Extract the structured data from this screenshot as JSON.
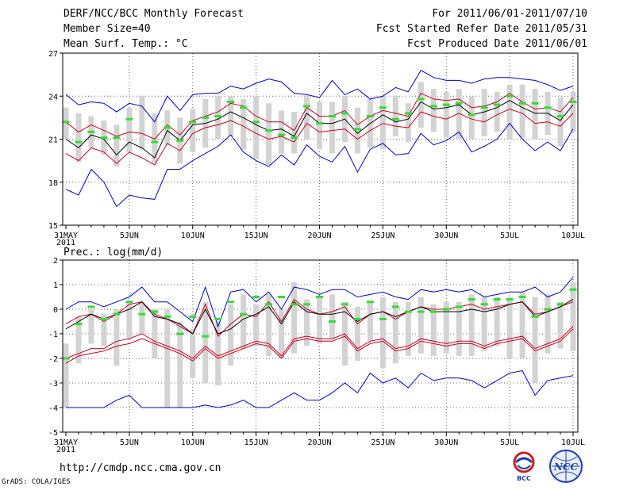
{
  "header": {
    "title": "DERF/NCC/BCC Monthly Forecast",
    "member_size": "Member Size=40",
    "variable": "Mean Surf. Temp.: °C",
    "forecast_period": "For 2011/06/01-2011/07/10",
    "fcst_started": "Fcst Started Refer Date 2011/05/31",
    "fcst_produced": "Fcst Produced Date 2011/06/01"
  },
  "footer": {
    "url": "http://cmdp.ncc.cma.gov.cn",
    "credit": "GrADS: COLA/IGES",
    "logo_left_text": "BCC",
    "logo_right_text": "NCC"
  },
  "colors": {
    "envelope": "#0000cc",
    "spread": "#cc0022",
    "mean": "#000000",
    "box": "#d3d3d3",
    "marker": "#33dd33",
    "grid": "#666666"
  },
  "chart_data": [
    {
      "type": "line",
      "title": "Mean Surf. Temp.: °C",
      "xlabel": "",
      "ylabel": "°C",
      "days": 41,
      "x_tick_labels": [
        "31MAY",
        "5JUN",
        "10JUN",
        "15JUN",
        "20JUN",
        "25JUN",
        "30JUN",
        "5JUL",
        "10JUL"
      ],
      "x_tick_days": [
        0,
        5,
        10,
        15,
        20,
        25,
        30,
        35,
        40
      ],
      "x_sub_label": "2011",
      "y_ticks": [
        15,
        18,
        21,
        24,
        27
      ],
      "ylim": [
        15,
        27
      ],
      "grid": true,
      "series": [
        {
          "name": "max",
          "color": "blue",
          "values": [
            24.1,
            23.4,
            23.6,
            23.5,
            22.9,
            23.5,
            23.3,
            22.2,
            24.0,
            23.0,
            24.1,
            24.2,
            24.2,
            24.7,
            24.5,
            24.9,
            25.2,
            25.0,
            24.2,
            24.1,
            23.9,
            25.1,
            24.1,
            24.5,
            23.8,
            24.0,
            24.6,
            24.3,
            25.8,
            25.3,
            25.1,
            25.1,
            24.9,
            25.2,
            25.3,
            25.3,
            25.2,
            25.1,
            24.8,
            24.4,
            24.7
          ]
        },
        {
          "name": "upper",
          "color": "red",
          "values": [
            22.2,
            21.5,
            22.0,
            21.6,
            21.2,
            21.5,
            21.4,
            21.0,
            22.0,
            21.3,
            22.3,
            22.6,
            22.9,
            23.5,
            23.3,
            22.6,
            22.2,
            22.2,
            21.6,
            23.2,
            22.6,
            22.6,
            23.0,
            22.0,
            22.6,
            23.0,
            22.8,
            22.6,
            24.2,
            23.8,
            23.7,
            23.8,
            23.2,
            23.3,
            23.6,
            24.2,
            23.6,
            23.1,
            23.2,
            22.9,
            23.9
          ]
        },
        {
          "name": "mean",
          "color": "black",
          "values": [
            21.0,
            20.4,
            21.3,
            21.0,
            19.9,
            20.8,
            20.4,
            19.7,
            21.6,
            20.9,
            22.0,
            22.1,
            22.4,
            22.9,
            22.5,
            22.0,
            21.6,
            21.7,
            21.2,
            22.8,
            22.1,
            22.1,
            22.4,
            21.4,
            22.1,
            22.7,
            22.2,
            22.4,
            23.6,
            23.1,
            23.2,
            23.4,
            22.7,
            22.9,
            23.2,
            23.7,
            23.2,
            22.8,
            22.8,
            22.3,
            23.4
          ]
        },
        {
          "name": "lower",
          "color": "red",
          "values": [
            20.0,
            19.5,
            20.4,
            20.1,
            19.3,
            20.1,
            19.7,
            19.2,
            20.7,
            20.2,
            21.4,
            21.8,
            22.0,
            22.3,
            21.9,
            21.4,
            21.0,
            21.2,
            20.8,
            22.1,
            21.5,
            21.6,
            21.7,
            21.0,
            21.6,
            22.1,
            21.9,
            21.8,
            22.9,
            22.6,
            22.4,
            22.8,
            22.4,
            22.2,
            22.7,
            23.1,
            22.8,
            22.1,
            22.2,
            21.9,
            22.8
          ]
        },
        {
          "name": "min",
          "color": "blue",
          "values": [
            17.5,
            17.1,
            18.9,
            18.0,
            16.3,
            17.1,
            16.9,
            16.8,
            18.9,
            18.9,
            19.5,
            20.0,
            20.5,
            21.3,
            20.1,
            19.5,
            19.1,
            19.9,
            19.2,
            20.6,
            19.8,
            19.4,
            20.5,
            18.7,
            20.3,
            20.7,
            19.9,
            20.0,
            21.4,
            20.6,
            20.9,
            21.5,
            20.1,
            20.5,
            21.0,
            22.1,
            21.0,
            20.2,
            20.8,
            20.2,
            21.7
          ]
        },
        {
          "name": "box_high",
          "color": "grey",
          "values": [
            23.2,
            22.8,
            22.6,
            22.3,
            22.0,
            23.2,
            24.0,
            22.8,
            23.0,
            22.5,
            23.1,
            23.8,
            24.0,
            24.0,
            23.8,
            24.0,
            23.5,
            23.0,
            22.9,
            24.0,
            23.6,
            23.6,
            24.0,
            23.2,
            23.8,
            24.0,
            24.0,
            23.5,
            25.0,
            24.5,
            24.3,
            24.5,
            24.0,
            24.5,
            24.3,
            24.8,
            24.8,
            24.5,
            24.3,
            23.9,
            24.3
          ]
        },
        {
          "name": "box_low",
          "color": "grey",
          "values": [
            21.0,
            19.4,
            20.4,
            19.9,
            19.1,
            20.1,
            20.3,
            19.3,
            20.6,
            19.3,
            20.1,
            20.4,
            21.0,
            21.2,
            20.3,
            19.6,
            19.2,
            20.0,
            20.0,
            21.0,
            20.3,
            20.0,
            20.8,
            20.0,
            20.4,
            20.3,
            21.2,
            20.8,
            21.8,
            21.5,
            21.1,
            21.0,
            21.0,
            21.2,
            21.5,
            21.0,
            21.1,
            21.0,
            21.3,
            20.5,
            21.5
          ]
        },
        {
          "name": "marker",
          "color": "green",
          "values": [
            22.2,
            20.8,
            21.5,
            21.1,
            21.1,
            22.4,
            null,
            20.8,
            21.8,
            20.9,
            22.2,
            22.5,
            22.6,
            23.6,
            23.2,
            22.2,
            21.6,
            21.3,
            21.1,
            23.3,
            22.1,
            22.6,
            22.8,
            21.7,
            22.6,
            23.2,
            22.4,
            22.8,
            23.8,
            23.3,
            23.4,
            23.5,
            22.7,
            23.2,
            23.4,
            24.0,
            23.5,
            23.5,
            23.2,
            22.6,
            23.6
          ]
        }
      ]
    },
    {
      "type": "line",
      "title": "Prec.: log(mm/d)",
      "xlabel": "",
      "ylabel": "log(mm/d)",
      "days": 41,
      "x_tick_labels": [
        "31MAY",
        "5JUN",
        "10JUN",
        "15JUN",
        "20JUN",
        "25JUN",
        "30JUN",
        "5JUL",
        "10JUL"
      ],
      "x_tick_days": [
        0,
        5,
        10,
        15,
        20,
        25,
        30,
        35,
        40
      ],
      "x_sub_label": "2011",
      "y_ticks": [
        -5,
        -4,
        -3,
        -2,
        -1,
        0,
        1,
        2
      ],
      "ylim": [
        -5,
        2
      ],
      "grid": true,
      "series": [
        {
          "name": "max",
          "color": "blue",
          "values": [
            0.0,
            0.3,
            0.3,
            0.1,
            0.3,
            0.5,
            0.9,
            0.3,
            0.3,
            -0.1,
            -0.5,
            0.9,
            -0.7,
            0.7,
            0.8,
            0.3,
            0.7,
            0.0,
            0.9,
            0.8,
            0.6,
            0.8,
            0.8,
            0.5,
            0.6,
            0.7,
            0.5,
            0.4,
            0.8,
            0.7,
            0.8,
            0.7,
            0.8,
            0.5,
            0.6,
            0.7,
            0.7,
            0.9,
            0.5,
            0.7,
            1.3
          ]
        },
        {
          "name": "upper",
          "color": "red",
          "values": [
            -0.6,
            -0.3,
            -0.2,
            -0.5,
            -0.2,
            0.2,
            0.3,
            -0.2,
            -0.4,
            -0.7,
            -1.0,
            0.2,
            -1.1,
            -0.6,
            -0.2,
            -0.3,
            0.3,
            -0.5,
            0.4,
            0.0,
            -0.2,
            -0.1,
            0.1,
            -0.6,
            -0.2,
            -0.1,
            -0.4,
            -0.1,
            0.1,
            0.0,
            0.0,
            0.1,
            0.2,
            0.0,
            0.1,
            0.2,
            0.3,
            -0.2,
            -0.1,
            0.1,
            0.3
          ]
        },
        {
          "name": "mean",
          "color": "black",
          "values": [
            -0.8,
            -0.5,
            -0.2,
            -0.4,
            -0.2,
            0.0,
            0.3,
            -0.3,
            -0.4,
            -0.6,
            -1.0,
            0.0,
            -1.0,
            -0.8,
            -0.4,
            -0.2,
            0.1,
            -0.6,
            0.3,
            -0.1,
            -0.2,
            -0.2,
            -0.1,
            -0.5,
            -0.2,
            -0.1,
            -0.3,
            -0.1,
            0.1,
            -0.1,
            -0.1,
            -0.1,
            0.0,
            -0.1,
            0.0,
            0.2,
            0.3,
            -0.3,
            -0.1,
            0.1,
            0.4
          ]
        },
        {
          "name": "lower",
          "color": "red",
          "values": [
            -2.0,
            -1.8,
            -1.6,
            -1.6,
            -1.3,
            -1.2,
            -1.0,
            -1.3,
            -1.5,
            -1.7,
            -2.0,
            -1.5,
            -1.9,
            -1.7,
            -1.5,
            -1.3,
            -1.4,
            -1.9,
            -1.2,
            -1.1,
            -1.2,
            -1.2,
            -1.0,
            -1.6,
            -1.3,
            -1.2,
            -1.6,
            -1.5,
            -1.2,
            -1.3,
            -1.4,
            -1.3,
            -1.3,
            -1.5,
            -1.3,
            -1.2,
            -1.1,
            -1.6,
            -1.4,
            -1.2,
            -0.7
          ]
        },
        {
          "name": "low_envelope",
          "color": "red",
          "values": [
            -2.2,
            -1.9,
            -1.8,
            -1.7,
            -1.5,
            -1.4,
            -1.2,
            -1.4,
            -1.6,
            -1.8,
            -2.1,
            -1.6,
            -2.0,
            -1.8,
            -1.6,
            -1.4,
            -1.5,
            -2.0,
            -1.3,
            -1.2,
            -1.3,
            -1.3,
            -1.1,
            -1.7,
            -1.4,
            -1.3,
            -1.7,
            -1.6,
            -1.3,
            -1.4,
            -1.5,
            -1.4,
            -1.4,
            -1.6,
            -1.4,
            -1.3,
            -1.2,
            -1.7,
            -1.5,
            -1.3,
            -0.8
          ]
        },
        {
          "name": "min",
          "color": "blue",
          "values": [
            -4.0,
            -4.0,
            -4.0,
            -4.0,
            -3.7,
            -3.5,
            -4.0,
            -4.0,
            -4.0,
            -4.0,
            -4.0,
            -3.9,
            -4.0,
            -3.9,
            -3.7,
            -4.0,
            -4.0,
            -3.7,
            -3.4,
            -3.7,
            -3.7,
            -3.4,
            -3.0,
            -3.4,
            -2.6,
            -3.0,
            -2.8,
            -3.2,
            -2.6,
            -2.9,
            -2.8,
            -2.8,
            -2.9,
            -3.2,
            -2.9,
            -2.6,
            -2.5,
            -3.5,
            -2.9,
            -2.8,
            -2.7
          ]
        },
        {
          "name": "box_high",
          "color": "grey",
          "values": [
            -1.4,
            -0.3,
            0.0,
            -0.2,
            0.0,
            0.3,
            0.3,
            0.0,
            0.0,
            -0.5,
            -0.8,
            0.3,
            -0.5,
            0.2,
            0.6,
            0.2,
            0.6,
            0.0,
            1.1,
            0.4,
            0.5,
            0.6,
            0.3,
            0.1,
            0.3,
            0.5,
            0.3,
            0.3,
            0.5,
            0.2,
            0.3,
            0.3,
            0.6,
            0.5,
            0.5,
            0.5,
            0.7,
            0.5,
            0.6,
            0.3,
            1.1
          ]
        },
        {
          "name": "box_low",
          "color": "grey",
          "values": [
            -4.0,
            -2.2,
            -1.4,
            -1.5,
            -2.3,
            -1.2,
            -1.0,
            -2.0,
            -4.0,
            -4.0,
            -2.8,
            -3.0,
            -3.1,
            -2.3,
            -1.6,
            -1.5,
            -1.9,
            -2.0,
            -1.8,
            -1.5,
            -1.4,
            -1.2,
            -2.3,
            -2.1,
            -1.3,
            -2.4,
            -2.2,
            -1.9,
            -1.8,
            -1.9,
            -1.8,
            -1.9,
            -1.9,
            -1.7,
            -1.5,
            -2.0,
            -2.0,
            -3.0,
            -1.8,
            -1.6,
            -1.7
          ]
        },
        {
          "name": "marker",
          "color": "green",
          "values": [
            -2.0,
            -0.6,
            0.1,
            -0.4,
            -0.2,
            0.3,
            -0.2,
            -0.1,
            -0.3,
            -1.0,
            -0.3,
            -1.1,
            -0.4,
            0.3,
            -0.2,
            0.5,
            0.2,
            0.5,
            0.2,
            0.2,
            0.5,
            -0.5,
            0.2,
            -0.4,
            0.3,
            -0.4,
            0.1,
            -0.1,
            -0.1,
            -0.1,
            0.0,
            0.1,
            0.4,
            0.2,
            0.4,
            0.4,
            0.5,
            -0.3,
            0.0,
            0.2,
            0.8
          ]
        }
      ]
    }
  ]
}
